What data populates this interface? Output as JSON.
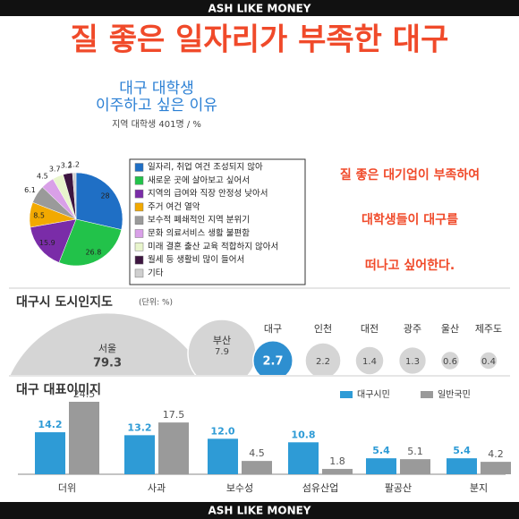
{
  "banner_top": "ASH LIKE MONEY",
  "headline": "질 좋은 일자리가 부족한 대구",
  "side_note": [
    "질 좋은 대기업이 부족하여",
    "대학생들이 대구를",
    "떠나고 싶어한다."
  ],
  "banner_bottom": "ASH LIKE MONEY",
  "chart_data": [
    {
      "type": "pie",
      "title_lines": [
        "대구 대학생",
        "이주하고 싶은 이유"
      ],
      "note": "지역 대학생 401명 / %",
      "categories": [
        "일자리, 취업 여건 조성되지 않아",
        "새로운 곳에 살아보고 싶어서",
        "지역의 급여와 직장 안정성 낮아서",
        "주거 여건 열악",
        "보수적 폐쇄적인 지역 분위기",
        "문화 의료서비스 생활 불편함",
        "미래 결혼 출산 교육 적합하지 않아서",
        "월세 등 생활비 많이 들어서",
        "기타"
      ],
      "values": [
        28,
        26.8,
        15.9,
        8.5,
        6.1,
        4.5,
        3.7,
        3.2,
        1.2
      ],
      "colors": [
        "#1f6fc5",
        "#22c24a",
        "#7a2ca8",
        "#f2a900",
        "#9a9a9a",
        "#d9a0e8",
        "#e8f5cc",
        "#3d1640",
        "#cfcfcf"
      ]
    },
    {
      "type": "bubble",
      "title": "대구시 도시인지도",
      "unit": "(단위: %)",
      "categories": [
        "서울",
        "부산",
        "대구",
        "인천",
        "대전",
        "광주",
        "울산",
        "제주도"
      ],
      "values": [
        79.3,
        7.9,
        2.7,
        2.2,
        1.4,
        1.3,
        0.6,
        0.4
      ],
      "color": "#d5d5d5",
      "highlight": "대구",
      "highlight_color": "#2e8fd0"
    },
    {
      "type": "bar",
      "title": "대구 대표이미지",
      "categories": [
        "더위",
        "사과",
        "보수성",
        "섬유산업",
        "팔공산",
        "분지"
      ],
      "series": [
        {
          "name": "대구시민",
          "color": "#2e9bd6",
          "values": [
            14.2,
            13.2,
            12.0,
            10.8,
            5.4,
            5.4
          ],
          "value_labels": [
            "14.2",
            "13.2",
            "12.0",
            "10.8",
            "5.4",
            "5.4"
          ]
        },
        {
          "name": "일반국민",
          "color": "#9a9a9a",
          "values": [
            24.5,
            17.5,
            4.5,
            1.8,
            5.1,
            4.2
          ]
        }
      ]
    }
  ]
}
